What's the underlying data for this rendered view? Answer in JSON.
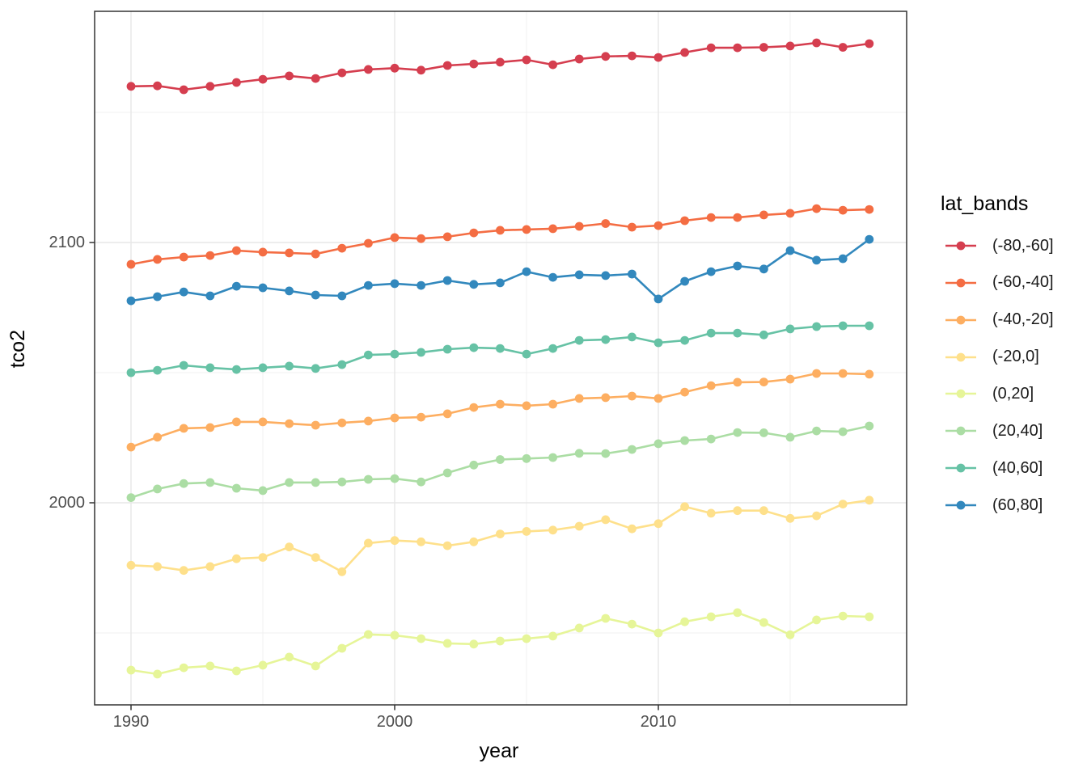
{
  "chart_data": {
    "type": "line",
    "title": "",
    "xlabel": "year",
    "ylabel": "tco2",
    "legend_title": "lat_bands",
    "legend_position": "right",
    "grid": true,
    "x_ticks": [
      1990,
      2000,
      2010
    ],
    "x_minor_ticks": [
      1995,
      2005,
      2015
    ],
    "y_ticks": [
      2000,
      2100
    ],
    "y_minor_ticks": [
      1950,
      2050,
      2150
    ],
    "xlim": [
      1988.6,
      2019.4
    ],
    "ylim": [
      1922,
      2189
    ],
    "x": [
      1990,
      1991,
      1992,
      1993,
      1994,
      1995,
      1996,
      1997,
      1998,
      1999,
      2000,
      2001,
      2002,
      2003,
      2004,
      2005,
      2006,
      2007,
      2008,
      2009,
      2010,
      2011,
      2012,
      2013,
      2014,
      2015,
      2016,
      2017,
      2018
    ],
    "series": [
      {
        "name": "(-80,-60]",
        "color": "#d53e4f",
        "values": [
          2160.0,
          2160.2,
          2158.7,
          2160.0,
          2161.5,
          2162.7,
          2164.0,
          2163.0,
          2165.2,
          2166.5,
          2167.0,
          2166.2,
          2168.0,
          2168.6,
          2169.3,
          2170.2,
          2168.3,
          2170.5,
          2171.5,
          2171.7,
          2171.1,
          2173.0,
          2174.8,
          2174.8,
          2175.0,
          2175.5,
          2176.7,
          2175.0,
          2176.4
        ]
      },
      {
        "name": "(-60,-40]",
        "color": "#f46d43",
        "values": [
          2091.6,
          2093.5,
          2094.4,
          2095.0,
          2096.9,
          2096.3,
          2096.0,
          2095.6,
          2097.8,
          2099.7,
          2101.9,
          2101.5,
          2102.2,
          2103.7,
          2104.7,
          2105.0,
          2105.3,
          2106.2,
          2107.3,
          2105.9,
          2106.5,
          2108.4,
          2109.6,
          2109.6,
          2110.6,
          2111.2,
          2113.0,
          2112.4,
          2112.7
        ]
      },
      {
        "name": "(-40,-20]",
        "color": "#fdae61",
        "values": [
          2021.4,
          2025.2,
          2028.6,
          2028.9,
          2031.1,
          2031.1,
          2030.4,
          2029.8,
          2030.7,
          2031.4,
          2032.6,
          2032.9,
          2034.2,
          2036.6,
          2037.9,
          2037.3,
          2037.9,
          2040.1,
          2040.4,
          2041.0,
          2040.1,
          2042.5,
          2045.0,
          2046.3,
          2046.4,
          2047.5,
          2049.7,
          2049.7,
          2049.4
        ]
      },
      {
        "name": "(-20,0]",
        "color": "#fee08b",
        "values": [
          1976.0,
          1975.5,
          1974.0,
          1975.5,
          1978.5,
          1979.0,
          1983.0,
          1979.0,
          1973.5,
          1984.5,
          1985.5,
          1985.0,
          1983.5,
          1985.0,
          1988.0,
          1989.0,
          1989.5,
          1991.0,
          1993.5,
          1990.0,
          1992.0,
          1998.5,
          1996.0,
          1997.0,
          1997.0,
          1994.0,
          1995.0,
          1999.5,
          2001.0
        ]
      },
      {
        "name": "(0,20]",
        "color": "#e6f598",
        "values": [
          1935.7,
          1934.2,
          1936.6,
          1937.3,
          1935.4,
          1937.6,
          1940.7,
          1937.3,
          1944.1,
          1949.4,
          1949.1,
          1947.8,
          1946.0,
          1945.7,
          1946.9,
          1947.8,
          1948.8,
          1951.9,
          1955.6,
          1953.4,
          1950.0,
          1954.3,
          1956.2,
          1957.8,
          1954.0,
          1949.3,
          1955.0,
          1956.5,
          1956.2
        ]
      },
      {
        "name": "(20,40]",
        "color": "#abdda4",
        "values": [
          2002.0,
          2005.3,
          2007.4,
          2007.8,
          2005.6,
          2004.7,
          2007.8,
          2007.8,
          2008.0,
          2009.0,
          2009.3,
          2008.0,
          2011.5,
          2014.5,
          2016.6,
          2017.0,
          2017.4,
          2019.0,
          2018.9,
          2020.5,
          2022.7,
          2023.9,
          2024.5,
          2027.0,
          2026.9,
          2025.2,
          2027.6,
          2027.3,
          2029.5
        ]
      },
      {
        "name": "(40,60]",
        "color": "#66c2a5",
        "values": [
          2050.0,
          2050.9,
          2052.8,
          2051.9,
          2051.2,
          2051.9,
          2052.5,
          2051.6,
          2053.1,
          2056.8,
          2057.1,
          2057.8,
          2059.0,
          2059.6,
          2059.3,
          2057.1,
          2059.3,
          2062.4,
          2062.7,
          2063.7,
          2061.5,
          2062.4,
          2065.2,
          2065.2,
          2064.5,
          2066.8,
          2067.7,
          2068.0,
          2068.0
        ]
      },
      {
        "name": "(60,80]",
        "color": "#3288bd",
        "values": [
          2077.6,
          2079.2,
          2081.0,
          2079.5,
          2083.2,
          2082.6,
          2081.4,
          2079.8,
          2079.5,
          2083.5,
          2084.2,
          2083.5,
          2085.4,
          2083.9,
          2084.5,
          2088.8,
          2086.6,
          2087.6,
          2087.3,
          2087.9,
          2078.3,
          2085.1,
          2088.8,
          2091.0,
          2089.8,
          2096.9,
          2093.2,
          2093.8,
          2101.2
        ]
      }
    ]
  },
  "colors": {
    "panel_background": "#ffffff",
    "panel_border": "#333333",
    "grid_major": "#e7e7e7",
    "grid_minor": "#f0f0f0",
    "tick_mark": "#333333",
    "tick_label": "#4d4d4d",
    "axis_title": "#000000"
  }
}
